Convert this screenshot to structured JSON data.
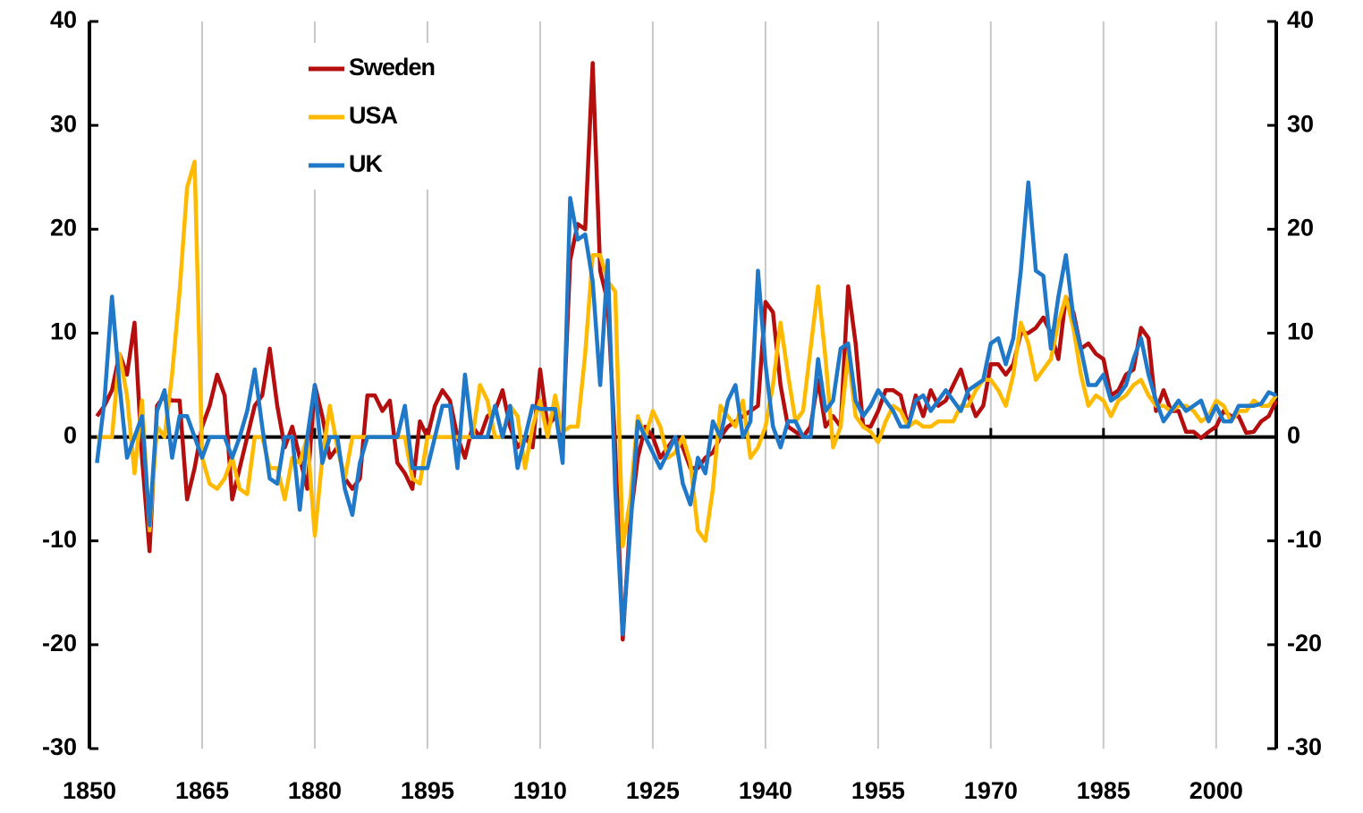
{
  "chart_data": {
    "type": "line",
    "x": [
      1851,
      1852,
      1853,
      1854,
      1855,
      1856,
      1857,
      1858,
      1859,
      1860,
      1861,
      1862,
      1863,
      1864,
      1865,
      1866,
      1867,
      1868,
      1869,
      1870,
      1871,
      1872,
      1873,
      1874,
      1875,
      1876,
      1877,
      1878,
      1879,
      1880,
      1881,
      1882,
      1883,
      1884,
      1885,
      1886,
      1887,
      1888,
      1889,
      1890,
      1891,
      1892,
      1893,
      1894,
      1895,
      1896,
      1897,
      1898,
      1899,
      1900,
      1901,
      1902,
      1903,
      1904,
      1905,
      1906,
      1907,
      1908,
      1909,
      1910,
      1911,
      1912,
      1913,
      1914,
      1915,
      1916,
      1917,
      1918,
      1919,
      1920,
      1921,
      1922,
      1923,
      1924,
      1925,
      1926,
      1927,
      1928,
      1929,
      1930,
      1931,
      1932,
      1933,
      1934,
      1935,
      1936,
      1937,
      1938,
      1939,
      1940,
      1941,
      1942,
      1943,
      1944,
      1945,
      1946,
      1947,
      1948,
      1949,
      1950,
      1951,
      1952,
      1953,
      1954,
      1955,
      1956,
      1957,
      1958,
      1959,
      1960,
      1961,
      1962,
      1963,
      1964,
      1965,
      1966,
      1967,
      1968,
      1969,
      1970,
      1971,
      1972,
      1973,
      1974,
      1975,
      1976,
      1977,
      1978,
      1979,
      1980,
      1981,
      1982,
      1983,
      1984,
      1985,
      1986,
      1987,
      1988,
      1989,
      1990,
      1991,
      1992,
      1993,
      1994,
      1995,
      1996,
      1997,
      1998,
      1999,
      2000,
      2001,
      2002,
      2003,
      2004,
      2005,
      2006,
      2007,
      2008
    ],
    "series": [
      {
        "name": "Sweden",
        "color": "#b40e0e",
        "values": [
          2,
          3,
          4.5,
          8,
          6,
          11,
          -2,
          -11,
          3,
          4,
          3.5,
          3.5,
          -6,
          -3,
          1,
          3,
          6,
          4,
          -6,
          -3,
          0,
          3,
          4,
          8.5,
          3,
          -1,
          1,
          -2,
          -5,
          5,
          2,
          -2,
          -1,
          -4,
          -5,
          -4,
          4,
          4,
          2.5,
          3.5,
          -2.5,
          -3.5,
          -5,
          1.5,
          0,
          3,
          4.5,
          3.5,
          0,
          -2,
          1,
          0,
          2,
          2.5,
          4.5,
          1,
          -1,
          0,
          -1,
          6.5,
          1,
          2,
          0,
          17,
          20.5,
          20,
          36,
          16,
          13,
          -1,
          -19.5,
          -8,
          -2,
          1,
          0,
          -2,
          -1,
          0,
          -1,
          -3,
          -3,
          -2,
          -1.5,
          0,
          1,
          1.5,
          2,
          2.5,
          3,
          13,
          12,
          5,
          1,
          0.5,
          0,
          1,
          5.5,
          1,
          2,
          1,
          14.5,
          9,
          1,
          1,
          2.5,
          4.5,
          4.5,
          4,
          1,
          4,
          2,
          4.5,
          3,
          3.5,
          5,
          6.5,
          4,
          2,
          3,
          7,
          7,
          6,
          7,
          10,
          10,
          10.5,
          11.5,
          10,
          7.5,
          13.5,
          12,
          8.5,
          9,
          8,
          7.5,
          4,
          4.5,
          6,
          6.5,
          10.5,
          9.5,
          2.5,
          4.5,
          2.5,
          2.5,
          0.5,
          0.5,
          -0.1,
          0.5,
          1,
          2.5,
          2,
          2,
          0.4,
          0.5,
          1.5,
          2,
          3.5
        ]
      },
      {
        "name": "USA",
        "color": "#ffba00",
        "values": [
          0,
          0,
          0,
          8,
          4,
          -3.5,
          3.5,
          -9,
          1,
          0,
          6,
          14,
          24,
          26.5,
          -2,
          -4.5,
          -5,
          -4,
          -2,
          -5,
          -5.5,
          0,
          0,
          -3,
          -3,
          -6,
          -2,
          -2.5,
          0,
          -9.5,
          -2,
          3,
          -1,
          -4,
          0,
          0,
          0,
          0,
          0,
          0,
          0,
          0,
          -4,
          -4.5,
          0,
          0,
          0,
          0,
          0,
          0,
          0,
          5,
          3.5,
          0,
          0,
          3,
          2,
          -3,
          1,
          3.5,
          0,
          4,
          0.5,
          1,
          1,
          8,
          17.5,
          17.5,
          15,
          14,
          -10.5,
          -6,
          2,
          0,
          2.5,
          1,
          -2,
          -1.5,
          0,
          -2.5,
          -9,
          -10,
          -5,
          3,
          2,
          1,
          3.5,
          -2,
          -1,
          1,
          5,
          11,
          6,
          1.5,
          2.5,
          8.5,
          14.5,
          7.5,
          -1,
          1,
          8,
          2,
          1,
          0.5,
          -0.5,
          1.5,
          3,
          2.5,
          1,
          1.5,
          1,
          1,
          1.5,
          1.5,
          1.5,
          3,
          3,
          4.5,
          5.5,
          5.5,
          4.5,
          3,
          6,
          11,
          9,
          5.5,
          6.5,
          7.5,
          11,
          13.5,
          10.5,
          6,
          3,
          4,
          3.5,
          2,
          3.5,
          4,
          5,
          5.5,
          4,
          3,
          3,
          2.5,
          3,
          3,
          2.5,
          1.5,
          2,
          3.5,
          3,
          1.5,
          2.5,
          2.5,
          3.5,
          3,
          3,
          4
        ]
      },
      {
        "name": "UK",
        "color": "#1f78c8",
        "values": [
          -2.5,
          3.5,
          13.5,
          5,
          -2,
          0,
          2,
          -8.5,
          2.5,
          4.5,
          -2,
          2,
          2,
          0,
          -2,
          0,
          0,
          0,
          -2,
          0,
          2.5,
          6.5,
          1,
          -4,
          -4.5,
          0,
          0,
          -7,
          0,
          5,
          -2.5,
          0,
          0,
          -5,
          -7.5,
          -2.5,
          0,
          0,
          0,
          0,
          0,
          3,
          -3,
          -3,
          -3,
          0,
          3,
          3,
          -3,
          6,
          0,
          0,
          0,
          3,
          0,
          3,
          -3,
          0,
          3,
          2.7,
          2.7,
          2.7,
          -2.5,
          23,
          19,
          19.5,
          15,
          5,
          17,
          -5,
          -19,
          -9,
          1.5,
          0,
          -1.5,
          -3,
          -1.5,
          0,
          -4.5,
          -6.5,
          -2,
          -3.5,
          1.5,
          0,
          3.5,
          5,
          0,
          1.5,
          16,
          7,
          1,
          -1,
          1.5,
          1.5,
          0,
          0,
          7.5,
          2.5,
          3.5,
          8.5,
          9,
          3.5,
          2,
          3,
          4.5,
          3.5,
          2.5,
          1,
          1,
          3.5,
          4,
          2.5,
          3.5,
          4.5,
          3.5,
          2.5,
          4.5,
          5,
          5.5,
          9,
          9.5,
          7,
          9.5,
          16,
          24.5,
          16,
          15.5,
          8.5,
          13.5,
          17.5,
          11.5,
          8.5,
          5,
          5,
          6,
          3.5,
          4,
          5,
          7.5,
          9.5,
          6,
          3.5,
          1.5,
          2.5,
          3.5,
          2.5,
          3,
          3.5,
          1.5,
          3,
          1.5,
          1.5,
          3,
          3,
          3,
          3.2,
          4.3,
          4
        ]
      }
    ],
    "xlim": [
      1850,
      2008
    ],
    "xticks": [
      1850,
      1865,
      1880,
      1895,
      1910,
      1925,
      1940,
      1955,
      1970,
      1985,
      2000
    ],
    "ylim": [
      -30,
      40
    ],
    "yticks": [
      -30,
      -20,
      -10,
      0,
      10,
      20,
      30,
      40
    ],
    "y2lim": [
      -30,
      40
    ],
    "y2ticks": [
      -30,
      -20,
      -10,
      0,
      10,
      20,
      30,
      40
    ],
    "grid": true,
    "legend": "upper left"
  }
}
